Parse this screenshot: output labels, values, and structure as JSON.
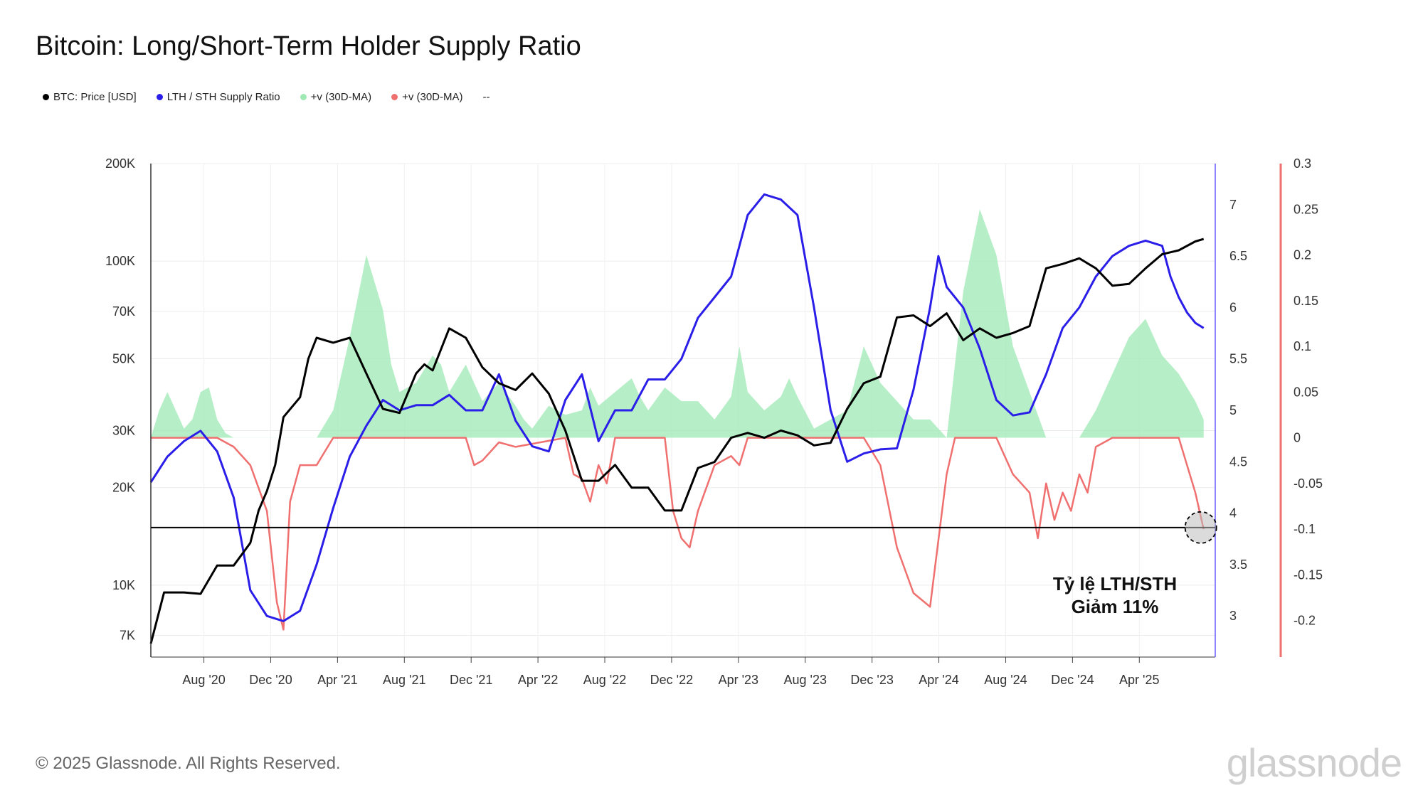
{
  "title": "Bitcoin: Long/Short-Term Holder Supply Ratio",
  "legend": [
    {
      "label": "BTC: Price [USD]",
      "color": "#000000"
    },
    {
      "label": "LTH / STH Supply Ratio",
      "color": "#2a1ee8"
    },
    {
      "label": "+v (30D-MA)",
      "color": "#9ee9b4"
    },
    {
      "label": "+v (30D-MA)",
      "color": "#f07070"
    },
    {
      "label": "--",
      "color": ""
    }
  ],
  "footer": "© 2025 Glassnode. All Rights Reserved.",
  "brand": "glassnode",
  "chart_data": {
    "type": "line",
    "title": "Bitcoin: Long/Short-Term Holder Supply Ratio",
    "x_ticks": [
      "Aug '20",
      "Dec '20",
      "Apr '21",
      "Aug '21",
      "Dec '21",
      "Apr '22",
      "Aug '22",
      "Dec '22",
      "Apr '23",
      "Aug '23",
      "Dec '23",
      "Apr '24",
      "Aug '24",
      "Dec '24",
      "Apr '25"
    ],
    "x_range": [
      "2020-05",
      "2025-08"
    ],
    "axes": {
      "price": {
        "scale": "log",
        "ylim": [
          6000,
          200000
        ],
        "ticks": [
          "7K",
          "10K",
          "20K",
          "30K",
          "50K",
          "70K",
          "100K",
          "200K"
        ],
        "tick_values": [
          7000,
          10000,
          20000,
          30000,
          50000,
          70000,
          100000,
          200000
        ]
      },
      "ratio": {
        "ylim": [
          2.6,
          7.4
        ],
        "ticks": [
          "3",
          "3.5",
          "4",
          "4.5",
          "5",
          "5.5",
          "6",
          "6.5",
          "7"
        ],
        "tick_values": [
          3,
          3.5,
          4,
          4.5,
          5,
          5.5,
          6,
          6.5,
          7
        ]
      },
      "change": {
        "ylim": [
          -0.24,
          0.3
        ],
        "ticks": [
          "-0.2",
          "-0.15",
          "-0.1",
          "-0.05",
          "0",
          "0.05",
          "0.1",
          "0.15",
          "0.2",
          "0.25",
          "0.3"
        ],
        "tick_values": [
          -0.2,
          -0.15,
          -0.1,
          -0.05,
          0,
          0.05,
          0.1,
          0.15,
          0.2,
          0.25,
          0.3
        ]
      }
    },
    "series": [
      {
        "name": "BTC: Price [USD]",
        "axis": "price",
        "color": "#000000",
        "t": [
          0,
          0.8,
          2,
          3,
          4,
          5,
          6,
          6.5,
          7,
          7.5,
          8,
          9,
          9.5,
          10,
          11,
          12,
          13,
          14,
          15,
          16,
          16.5,
          17,
          18,
          19,
          20,
          21,
          22,
          23,
          24,
          25,
          26,
          27,
          28,
          29,
          30,
          31,
          32,
          33,
          34,
          35,
          36,
          37,
          38,
          39,
          40,
          41,
          42,
          43,
          44,
          45,
          46,
          47,
          48,
          49,
          50,
          51,
          52,
          53,
          54,
          55,
          56,
          57,
          58,
          59,
          60,
          61,
          62,
          63,
          63.5
        ],
        "values": [
          6600,
          9500,
          9500,
          9400,
          11500,
          11500,
          13500,
          17000,
          19500,
          23500,
          33000,
          38000,
          50000,
          58000,
          56000,
          58000,
          45000,
          35000,
          34000,
          45000,
          48000,
          46000,
          62000,
          58000,
          47000,
          42000,
          40000,
          45000,
          39000,
          30000,
          21000,
          21000,
          23500,
          20000,
          20000,
          17000,
          17000,
          23000,
          24000,
          28500,
          29500,
          28500,
          30000,
          29000,
          27000,
          27500,
          35000,
          42000,
          44000,
          67000,
          68000,
          63000,
          69000,
          57000,
          62000,
          58000,
          60000,
          63000,
          95000,
          98000,
          102000,
          95000,
          84000,
          85000,
          95000,
          105000,
          108000,
          115000,
          117000
        ]
      },
      {
        "name": "LTH / STH Supply Ratio",
        "axis": "ratio",
        "color": "#2a1ee8",
        "t": [
          0,
          1,
          2,
          3,
          4,
          5,
          6,
          7,
          8,
          9,
          10,
          11,
          12,
          13,
          14,
          15,
          16,
          17,
          18,
          19,
          20,
          21,
          22,
          23,
          24,
          25,
          26,
          27,
          28,
          29,
          30,
          31,
          32,
          33,
          34,
          35,
          36,
          37,
          38,
          39,
          40,
          41,
          42,
          43,
          44,
          45,
          46,
          47,
          47.5,
          48,
          49,
          50,
          51,
          52,
          53,
          54,
          55,
          56,
          57,
          58,
          59,
          60,
          61,
          61.5,
          62,
          62.5,
          63,
          63.5
        ],
        "values": [
          4.3,
          4.55,
          4.7,
          4.8,
          4.6,
          4.15,
          3.25,
          3.0,
          2.95,
          3.05,
          3.5,
          4.05,
          4.55,
          4.85,
          5.1,
          5.0,
          5.05,
          5.05,
          5.15,
          5.0,
          5.0,
          5.35,
          4.9,
          4.65,
          4.6,
          5.1,
          5.35,
          4.7,
          5.0,
          5.0,
          5.3,
          5.3,
          5.5,
          5.9,
          6.1,
          6.3,
          6.9,
          7.1,
          7.05,
          6.9,
          6.0,
          5.0,
          4.5,
          4.58,
          4.62,
          4.63,
          5.2,
          6.0,
          6.5,
          6.2,
          6.0,
          5.6,
          5.1,
          4.95,
          4.98,
          5.35,
          5.8,
          6.0,
          6.3,
          6.5,
          6.6,
          6.65,
          6.6,
          6.3,
          6.1,
          5.95,
          5.85,
          5.8
        ]
      },
      {
        "name": "+v (30D-MA)",
        "axis": "change",
        "color": "#9ee9b4",
        "t": [
          0,
          0.5,
          1,
          1.5,
          2,
          2.5,
          3,
          3.5,
          4,
          4.5,
          5,
          5.5,
          6,
          10,
          11,
          12,
          13,
          14,
          14.5,
          15,
          16,
          17,
          17.5,
          18,
          19,
          20,
          21,
          22,
          22.5,
          23,
          24,
          25,
          26,
          26.5,
          27,
          28,
          29,
          29.5,
          30,
          31,
          32,
          33,
          34,
          35,
          35.5,
          36,
          37,
          38,
          38.5,
          39,
          40,
          41,
          42,
          43,
          44,
          45,
          46,
          47,
          47.5,
          48,
          49,
          50,
          51,
          52,
          53,
          54,
          55,
          56,
          57,
          58,
          59,
          60,
          61,
          62,
          63,
          63.5
        ],
        "values": [
          0,
          0.03,
          0.05,
          0.03,
          0.01,
          0.02,
          0.05,
          0.055,
          0.02,
          0.005,
          0,
          0,
          0,
          0,
          0.03,
          0.11,
          0.2,
          0.14,
          0.08,
          0.05,
          0.06,
          0.09,
          0.08,
          0.05,
          0.08,
          0.04,
          0.06,
          0.035,
          0.02,
          0.01,
          0.035,
          0.025,
          0.03,
          0.055,
          0.035,
          0.05,
          0.065,
          0.045,
          0.03,
          0.055,
          0.04,
          0.04,
          0.02,
          0.045,
          0.1,
          0.05,
          0.03,
          0.045,
          0.065,
          0.045,
          0.01,
          0.02,
          0.03,
          0.1,
          0.06,
          0.04,
          0.02,
          0.02,
          0.01,
          0,
          0.16,
          0.25,
          0.2,
          0.1,
          0.05,
          0,
          0,
          0,
          0.03,
          0.07,
          0.11,
          0.13,
          0.09,
          0.07,
          0.04,
          0.02
        ]
      },
      {
        "name": "+v (30D-MA)",
        "axis": "change",
        "color": "#f07070",
        "t": [
          0,
          4,
          5,
          6,
          7,
          7.6,
          8,
          8.4,
          9,
          10,
          11,
          19,
          19.5,
          20,
          21,
          22,
          25,
          25.5,
          26,
          26.5,
          27,
          27.5,
          28,
          31,
          31.5,
          32,
          32.5,
          33,
          34,
          35,
          35.5,
          36,
          43,
          44,
          45,
          46,
          47,
          48,
          48.5,
          49,
          49.5,
          50,
          50.5,
          51,
          52,
          53,
          53.5,
          54,
          54.5,
          55,
          55.5,
          56,
          56.5,
          57,
          58,
          62,
          63,
          63.5
        ],
        "values": [
          0,
          0,
          -0.01,
          -0.03,
          -0.08,
          -0.18,
          -0.21,
          -0.07,
          -0.03,
          -0.03,
          0,
          0,
          -0.03,
          -0.025,
          -0.005,
          -0.01,
          0,
          -0.04,
          -0.045,
          -0.07,
          -0.03,
          -0.05,
          0,
          0,
          -0.08,
          -0.11,
          -0.12,
          -0.08,
          -0.03,
          -0.02,
          -0.03,
          0,
          0,
          -0.03,
          -0.12,
          -0.17,
          -0.185,
          -0.04,
          0,
          0,
          0,
          0,
          0,
          0,
          -0.04,
          -0.06,
          -0.11,
          -0.05,
          -0.09,
          -0.06,
          -0.08,
          -0.04,
          -0.06,
          -0.01,
          0,
          0,
          -0.06,
          -0.1
        ]
      }
    ],
    "reference_line": {
      "axis": "ratio",
      "value": 3.86
    },
    "annotation": {
      "line1": "Tỷ lệ LTH/STH",
      "line2": "Giảm 11%"
    }
  }
}
